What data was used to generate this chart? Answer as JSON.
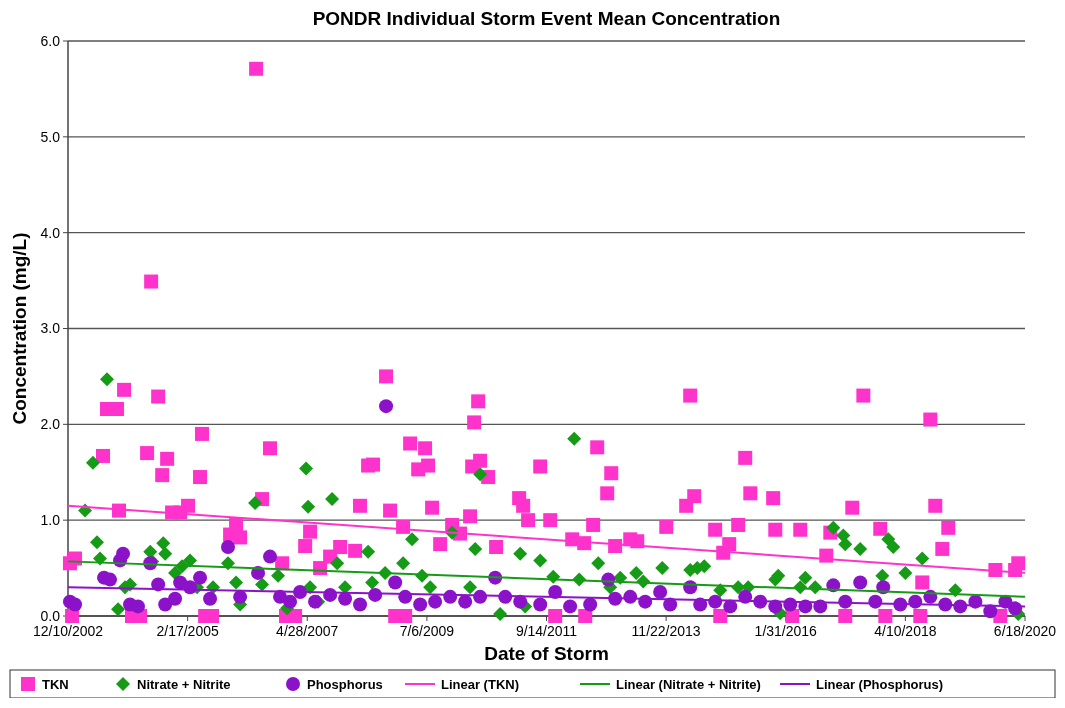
{
  "chart_data": {
    "type": "scatter",
    "title": "PONDR Individual Storm Event Mean Concentration",
    "xlabel": "Date of Storm",
    "ylabel": "Concentration (mg/L)",
    "xlim": [
      "2002-12-10",
      "2020-06-18"
    ],
    "xticks": [
      {
        "value": "2002-12-10",
        "label": "12/10/2002"
      },
      {
        "value": "2005-02-17",
        "label": "2/17/2005"
      },
      {
        "value": "2007-04-28",
        "label": "4/28/2007"
      },
      {
        "value": "2009-07-06",
        "label": "7/6/2009"
      },
      {
        "value": "2011-09-14",
        "label": "9/14/2011"
      },
      {
        "value": "2013-11-22",
        "label": "11/22/2013"
      },
      {
        "value": "2016-01-31",
        "label": "1/31/2016"
      },
      {
        "value": "2018-04-10",
        "label": "4/10/2018"
      },
      {
        "value": "2020-06-18",
        "label": "6/18/2020"
      }
    ],
    "ylim": [
      0,
      6
    ],
    "yticks": [
      {
        "value": 0,
        "label": "0.0"
      },
      {
        "value": 1,
        "label": "1.0"
      },
      {
        "value": 2,
        "label": "2.0"
      },
      {
        "value": 3,
        "label": "3.0"
      },
      {
        "value": 4,
        "label": "4.0"
      },
      {
        "value": 5,
        "label": "5.0"
      },
      {
        "value": 6,
        "label": "6.0"
      }
    ],
    "grid": "y",
    "legend": "bottom",
    "series": [
      {
        "name": "TKN",
        "marker": "square",
        "color": "#ff33cc",
        "x": [
          "2002-12-23",
          "2003-01-26",
          "2003-08-01",
          "2003-08-28",
          "2003-11-03",
          "2003-11-16",
          "2003-12-20",
          "2004-05-22",
          "2004-06-18",
          "2004-08-04",
          "2004-08-31",
          "2004-10-03",
          "2004-11-05",
          "2004-12-29",
          "2005-02-20",
          "2005-05-11",
          "2005-05-24",
          "2005-11-28",
          "2006-01-07",
          "2006-02-03",
          "2006-05-21",
          "2006-06-30",
          "2006-08-22",
          "2006-11-11",
          "2007-04-14",
          "2007-05-17",
          "2007-07-23",
          "2007-09-28",
          "2007-12-04",
          "2008-03-13",
          "2008-04-15",
          "2008-06-08",
          "2008-07-11",
          "2008-10-06",
          "2008-11-02",
          "2009-01-28",
          "2009-03-16",
          "2009-05-09",
          "2009-06-24",
          "2009-07-14",
          "2009-08-10",
          "2009-10-03",
          "2009-12-22",
          "2010-02-13",
          "2010-04-21",
          "2010-05-05",
          "2010-05-18",
          "2010-06-14",
          "2010-06-27",
          "2010-08-20",
          "2010-10-12",
          "2011-03-15",
          "2011-04-11",
          "2011-05-14",
          "2011-08-03",
          "2011-10-09",
          "2012-03-04",
          "2012-05-23",
          "2012-07-22",
          "2012-08-18",
          "2012-10-24",
          "2012-11-20",
          "2012-12-16",
          "2013-03-27",
          "2013-05-13",
          "2013-11-23",
          "2014-04-05",
          "2014-05-02",
          "2014-05-29",
          "2014-10-16",
          "2014-12-09",
          "2015-01-18",
          "2015-03-19",
          "2015-05-05",
          "2015-06-08",
          "2015-11-08",
          "2015-11-22",
          "2016-05-07",
          "2016-10-28",
          "2016-11-24",
          "2017-04-20",
          "2017-07-03",
          "2017-10-24",
          "2018-08-01",
          "2018-09-24",
          "2018-10-27",
          "2018-12-13",
          "2019-01-22",
          "2019-12-03",
          "2020-04-13",
          "2020-05-04",
          "2003-01-06",
          "2004-02-11",
          "2004-04-05",
          "2005-06-14",
          "2005-07-30",
          "2006-12-07",
          "2007-02-06",
          "2008-12-06",
          "2009-02-11",
          "2011-11-11",
          "2012-05-30",
          "2014-11-19",
          "2016-03-15",
          "2017-03-04",
          "2017-11-27",
          "2018-07-19",
          "2020-01-05"
        ],
        "values": [
          0.55,
          0.6,
          1.67,
          2.16,
          2.16,
          1.1,
          2.36,
          1.7,
          3.49,
          2.29,
          1.47,
          1.64,
          1.08,
          1.08,
          1.15,
          1.45,
          1.9,
          0.85,
          0.95,
          0.82,
          5.71,
          1.22,
          1.75,
          0.55,
          0.73,
          0.88,
          0.5,
          0.62,
          0.72,
          0.68,
          1.15,
          1.57,
          1.58,
          2.5,
          1.1,
          0.93,
          1.8,
          1.53,
          1.75,
          1.57,
          1.13,
          0.75,
          0.95,
          0.86,
          1.04,
          1.56,
          2.02,
          2.24,
          1.62,
          1.45,
          0.72,
          1.23,
          1.15,
          1.0,
          1.56,
          1.0,
          0.8,
          0.76,
          0.95,
          1.76,
          1.28,
          1.49,
          0.73,
          0.8,
          0.78,
          0.93,
          1.15,
          2.3,
          1.25,
          0.9,
          0.66,
          0.75,
          0.95,
          1.65,
          1.28,
          1.23,
          0.9,
          0.9,
          0.63,
          0.87,
          1.13,
          2.3,
          0.91,
          0.35,
          2.05,
          1.15,
          0.7,
          0.92,
          0.48,
          0.48,
          0.55,
          0,
          0,
          0,
          0,
          0,
          0,
          0,
          0,
          0,
          0,
          0,
          0,
          0,
          0,
          0,
          0,
          0
        ]
      },
      {
        "name": "Nitrate + Nitrite",
        "marker": "diamond",
        "color": "#169b16",
        "x": [
          "2003-04-03",
          "2003-05-26",
          "2003-06-22",
          "2003-07-12",
          "2003-08-28",
          "2003-11-10",
          "2003-12-26",
          "2004-01-29",
          "2004-06-12",
          "2004-06-25",
          "2004-09-07",
          "2004-09-20",
          "2004-11-25",
          "2005-01-11",
          "2005-03-05",
          "2005-04-21",
          "2005-08-06",
          "2005-11-14",
          "2006-01-07",
          "2006-02-03",
          "2006-05-14",
          "2006-06-30",
          "2006-10-15",
          "2006-12-14",
          "2007-04-20",
          "2007-05-04",
          "2007-05-17",
          "2007-07-10",
          "2007-10-11",
          "2007-11-14",
          "2008-01-06",
          "2008-06-08",
          "2008-07-05",
          "2008-09-30",
          "2009-01-28",
          "2009-03-29",
          "2009-06-04",
          "2009-07-28",
          "2009-12-22",
          "2010-04-21",
          "2010-05-25",
          "2010-06-27",
          "2010-11-08",
          "2011-03-22",
          "2011-04-24",
          "2011-08-03",
          "2011-10-29",
          "2012-03-17",
          "2012-04-20",
          "2012-08-25",
          "2012-11-13",
          "2013-01-19",
          "2013-05-06",
          "2013-06-22",
          "2013-10-27",
          "2014-05-02",
          "2014-06-18",
          "2014-08-04",
          "2014-11-19",
          "2015-03-19",
          "2015-05-25",
          "2015-11-22",
          "2015-12-12",
          "2015-12-25",
          "2016-05-07",
          "2016-06-10",
          "2016-08-15",
          "2016-12-14",
          "2017-02-19",
          "2017-03-04",
          "2017-06-12",
          "2017-11-07",
          "2017-12-17",
          "2018-01-19",
          "2018-04-10",
          "2018-08-01",
          "2019-03-10",
          "2020-05-04"
        ],
        "values": [
          1.1,
          1.6,
          0.77,
          0.6,
          2.47,
          0.07,
          0.3,
          0.33,
          0.67,
          0.57,
          0.76,
          0.65,
          0.45,
          0.52,
          0.58,
          0.3,
          0.3,
          0.55,
          0.35,
          0.12,
          1.18,
          0.33,
          0.42,
          0.08,
          1.54,
          1.14,
          0.3,
          0.15,
          1.22,
          0.55,
          0.3,
          0.67,
          0.35,
          0.45,
          0.55,
          0.8,
          0.42,
          0.3,
          0.87,
          0.3,
          0.7,
          1.48,
          0.02,
          0.65,
          0.1,
          0.58,
          0.41,
          1.85,
          0.38,
          0.55,
          0.3,
          0.4,
          0.45,
          0.36,
          0.5,
          0.48,
          0.5,
          0.52,
          0.27,
          0.3,
          0.3,
          0.38,
          0.42,
          0.03,
          0.3,
          0.4,
          0.3,
          0.92,
          0.84,
          0.75,
          0.7,
          0.42,
          0.8,
          0.72,
          0.45,
          0.6,
          0.27,
          0.02
        ]
      },
      {
        "name": "Phosphorus",
        "marker": "circle",
        "color": "#8b12c9",
        "x": [
          "2002-12-23",
          "2003-01-26",
          "2003-08-08",
          "2003-09-17",
          "2003-11-23",
          "2003-12-13",
          "2004-01-29",
          "2004-03-22",
          "2004-06-12",
          "2004-08-04",
          "2004-09-20",
          "2004-11-25",
          "2004-12-29",
          "2005-03-05",
          "2005-05-11",
          "2005-07-17",
          "2005-11-14",
          "2006-02-03",
          "2006-06-03",
          "2006-08-22",
          "2006-10-28",
          "2007-01-03",
          "2007-03-11",
          "2007-06-19",
          "2007-09-28",
          "2008-01-06",
          "2008-04-15",
          "2008-07-25",
          "2008-10-06",
          "2008-12-06",
          "2009-02-11",
          "2009-05-22",
          "2009-08-30",
          "2009-12-09",
          "2010-03-19",
          "2010-06-27",
          "2010-10-06",
          "2010-12-12",
          "2011-03-22",
          "2011-08-03",
          "2011-11-11",
          "2012-02-19",
          "2012-07-02",
          "2012-10-31",
          "2012-12-16",
          "2013-03-27",
          "2013-07-05",
          "2013-10-13",
          "2013-12-19",
          "2014-05-02",
          "2014-07-08",
          "2014-10-16",
          "2015-01-25",
          "2015-05-05",
          "2015-08-13",
          "2015-11-22",
          "2016-03-01",
          "2016-06-10",
          "2016-09-18",
          "2016-12-14",
          "2017-03-04",
          "2017-06-12",
          "2017-09-21",
          "2017-11-13",
          "2018-03-07",
          "2018-06-15",
          "2018-09-24",
          "2019-01-02",
          "2019-04-12",
          "2019-07-22",
          "2019-10-30",
          "2020-02-08",
          "2020-04-13"
        ],
        "values": [
          0.15,
          0.12,
          0.4,
          0.38,
          0.58,
          0.65,
          0.12,
          0.1,
          0.55,
          0.33,
          0.12,
          0.18,
          0.35,
          0.3,
          0.4,
          0.18,
          0.72,
          0.2,
          0.45,
          0.62,
          0.2,
          0.15,
          0.25,
          0.15,
          0.22,
          0.18,
          0.12,
          0.22,
          2.19,
          0.35,
          0.2,
          0.12,
          0.15,
          0.2,
          0.15,
          0.2,
          0.4,
          0.2,
          0.15,
          0.12,
          0.25,
          0.1,
          0.12,
          0.38,
          0.18,
          0.2,
          0.15,
          0.25,
          0.12,
          0.3,
          0.12,
          0.15,
          0.1,
          0.2,
          0.15,
          0.1,
          0.12,
          0.1,
          0.1,
          0.32,
          0.15,
          0.35,
          0.15,
          0.3,
          0.12,
          0.15,
          0.2,
          0.12,
          0.1,
          0.15,
          0.05,
          0.15,
          0.08
        ]
      },
      {
        "name": "Linear (TKN)",
        "type": "line",
        "line_style": "solid",
        "color": "#ff33cc",
        "x": [
          "2002-12-10",
          "2020-06-18"
        ],
        "values": [
          1.15,
          0.45
        ]
      },
      {
        "name": "Linear (Nitrate + Nitrite)",
        "type": "line",
        "line_style": "solid",
        "color": "#169b16",
        "x": [
          "2002-12-10",
          "2020-06-18"
        ],
        "values": [
          0.57,
          0.2
        ]
      },
      {
        "name": "Linear (Phosphorus)",
        "type": "line",
        "line_style": "solid",
        "color": "#8b12c9",
        "x": [
          "2002-12-10",
          "2020-06-18"
        ],
        "values": [
          0.3,
          0.1
        ]
      }
    ]
  }
}
